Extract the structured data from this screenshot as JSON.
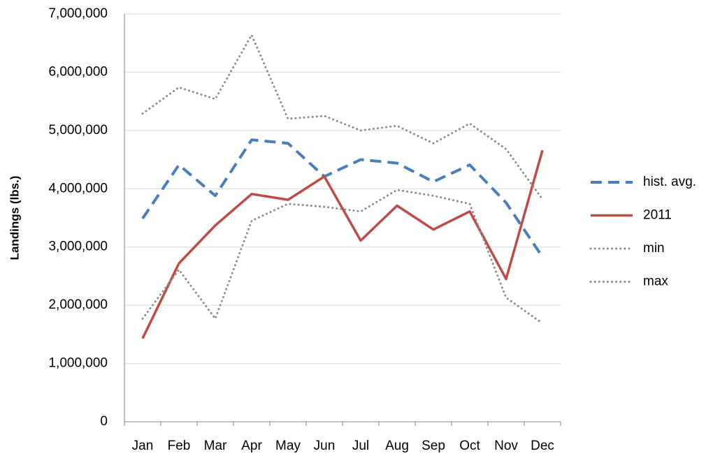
{
  "chart_data": {
    "type": "line",
    "y_label": "Landings (lbs.)",
    "categories": [
      "Jan",
      "Feb",
      "Mar",
      "Apr",
      "May",
      "Jun",
      "Jul",
      "Aug",
      "Sep",
      "Oct",
      "Nov",
      "Dec"
    ],
    "series": [
      {
        "name": "hist. avg.",
        "color": "#4a7ebb",
        "style": "dashed",
        "values": [
          3490000,
          4410000,
          3880000,
          4840000,
          4780000,
          4210000,
          4500000,
          4440000,
          4120000,
          4410000,
          3760000,
          2830000
        ]
      },
      {
        "name": "2011",
        "color": "#be4b48",
        "style": "solid",
        "values": [
          1430000,
          2720000,
          3370000,
          3910000,
          3810000,
          4210000,
          3110000,
          3710000,
          3300000,
          3610000,
          2450000,
          4660000
        ]
      },
      {
        "name": "min",
        "color": "#8c8c8c",
        "style": "dotted",
        "values": [
          1770000,
          2610000,
          1770000,
          3450000,
          3740000,
          3690000,
          3610000,
          3980000,
          3880000,
          3740000,
          2130000,
          1690000
        ]
      },
      {
        "name": "max",
        "color": "#8c8c8c",
        "style": "dotted",
        "values": [
          5290000,
          5740000,
          5540000,
          6640000,
          5200000,
          5250000,
          5000000,
          5080000,
          4780000,
          5120000,
          4680000,
          3820000
        ]
      }
    ],
    "ylim": [
      0,
      7000000
    ],
    "yticks": [
      0,
      {
        "value": 1000000,
        "label": "1,000,000"
      },
      {
        "value": 2000000,
        "label": "2,000,000"
      },
      {
        "value": 3000000,
        "label": "3,000,000"
      },
      {
        "value": 4000000,
        "label": "4,000,000"
      },
      {
        "value": 5000000,
        "label": "5,000,000"
      },
      {
        "value": 6000000,
        "label": "6,000,000"
      },
      {
        "value": 7000000,
        "label": "7,000,000"
      }
    ],
    "grid": true,
    "legend": "right"
  }
}
